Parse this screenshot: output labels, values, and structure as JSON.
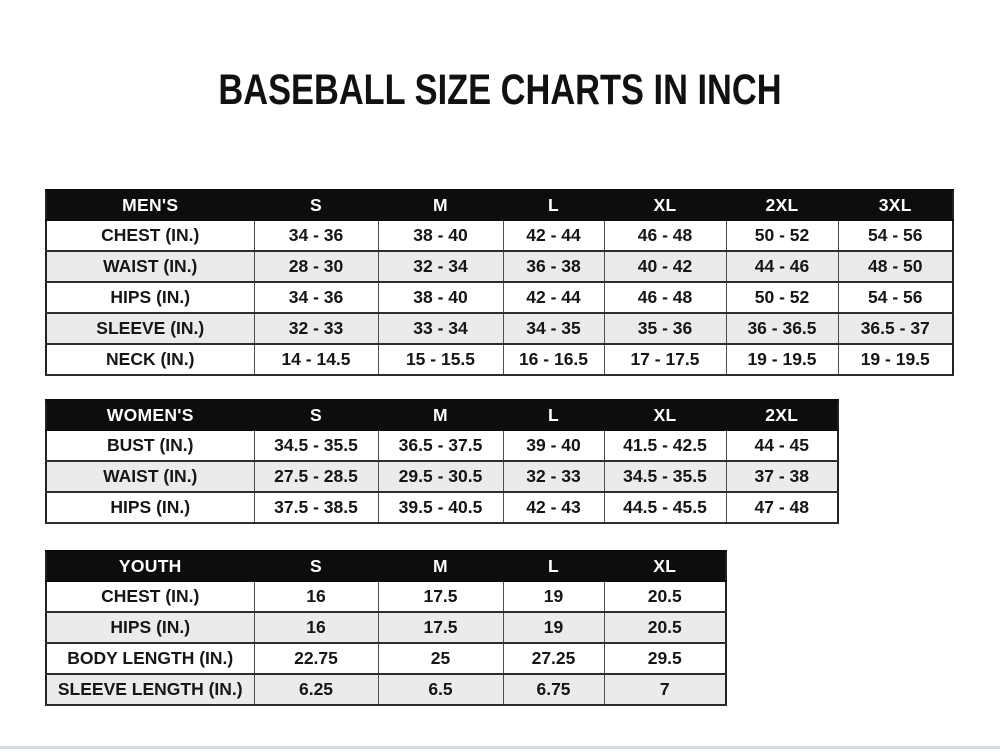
{
  "page": {
    "title": "BASEBALL SIZE CHARTS IN INCH"
  },
  "colors": {
    "header_bg": "#0d0d0d",
    "header_text": "#ffffff",
    "alt_row_bg": "#ebebeb",
    "border": "#2e2e2e",
    "text": "#161616"
  },
  "tables": [
    {
      "name": "mens",
      "header": [
        "MEN'S",
        "S",
        "M",
        "L",
        "XL",
        "2XL",
        "3XL"
      ],
      "rows": [
        [
          "CHEST (IN.)",
          "34 - 36",
          "38 - 40",
          "42 - 44",
          "46 - 48",
          "50 - 52",
          "54 - 56"
        ],
        [
          "WAIST (IN.)",
          "28 - 30",
          "32 - 34",
          "36 - 38",
          "40 - 42",
          "44 - 46",
          "48 - 50"
        ],
        [
          "HIPS (IN.)",
          "34 - 36",
          "38 - 40",
          "42 - 44",
          "46 - 48",
          "50 - 52",
          "54 - 56"
        ],
        [
          "SLEEVE (IN.)",
          "32 - 33",
          "33 - 34",
          "34 - 35",
          "35 - 36",
          "36 - 36.5",
          "36.5 - 37"
        ],
        [
          "NECK (IN.)",
          "14 - 14.5",
          "15 - 15.5",
          "16 - 16.5",
          "17 - 17.5",
          "19 - 19.5",
          "19 - 19.5"
        ]
      ]
    },
    {
      "name": "womens",
      "header": [
        "WOMEN'S",
        "S",
        "M",
        "L",
        "XL",
        "2XL"
      ],
      "rows": [
        [
          "BUST (IN.)",
          "34.5 - 35.5",
          "36.5 - 37.5",
          "39 - 40",
          "41.5 - 42.5",
          "44 - 45"
        ],
        [
          "WAIST (IN.)",
          "27.5 - 28.5",
          "29.5 - 30.5",
          "32 - 33",
          "34.5 - 35.5",
          "37 - 38"
        ],
        [
          "HIPS (IN.)",
          "37.5 - 38.5",
          "39.5 - 40.5",
          "42 - 43",
          "44.5 - 45.5",
          "47 - 48"
        ]
      ]
    },
    {
      "name": "youth",
      "header": [
        "YOUTH",
        "S",
        "M",
        "L",
        "XL"
      ],
      "rows": [
        [
          "CHEST (IN.)",
          "16",
          "17.5",
          "19",
          "20.5"
        ],
        [
          "HIPS (IN.)",
          "16",
          "17.5",
          "19",
          "20.5"
        ],
        [
          "BODY LENGTH (IN.)",
          "22.75",
          "25",
          "27.25",
          "29.5"
        ],
        [
          "SLEEVE LENGTH (IN.)",
          "6.25",
          "6.5",
          "6.75",
          "7"
        ]
      ]
    }
  ]
}
